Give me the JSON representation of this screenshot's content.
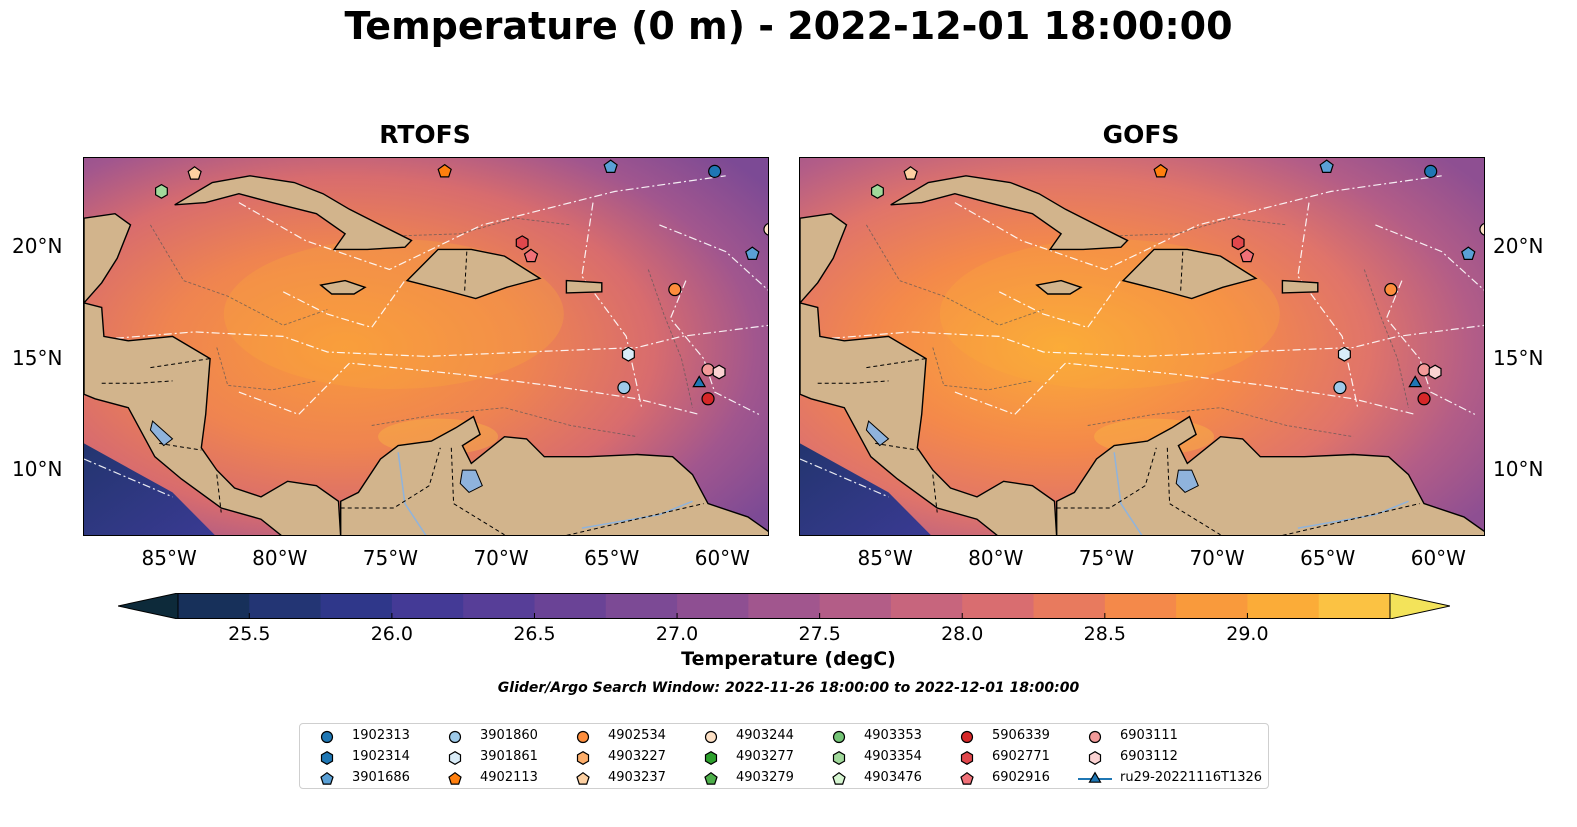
{
  "title": "Temperature (0 m) - 2022-12-01 18:00:00",
  "panels": [
    {
      "title": "RTOFS"
    },
    {
      "title": "GOFS"
    }
  ],
  "axes": {
    "x_ticks": [
      "85°W",
      "80°W",
      "75°W",
      "70°W",
      "65°W",
      "60°W"
    ],
    "y_ticks": [
      "20°N",
      "15°N",
      "10°N"
    ],
    "lon_range": [
      -89,
      -58
    ],
    "lat_range": [
      7,
      24
    ]
  },
  "colorbar": {
    "title": "Temperature (degC)",
    "ticks": [
      "25.5",
      "26.0",
      "26.5",
      "27.0",
      "27.5",
      "28.0",
      "28.5",
      "29.0"
    ],
    "min": 25.25,
    "max": 29.5,
    "step": 0.25,
    "colors": [
      "#0d2a3a",
      "#17305a",
      "#233574",
      "#2f378a",
      "#443a96",
      "#573e98",
      "#6a4396",
      "#7c4a95",
      "#8e4f92",
      "#a1568e",
      "#b35d87",
      "#c7657d",
      "#d96d70",
      "#e87a5e",
      "#f4894a",
      "#f99a3c",
      "#fbac38",
      "#fbc243",
      "#f3e35a"
    ]
  },
  "search_window": "Glider/Argo Search Window: 2022-11-26 18:00:00 to 2022-12-01 18:00:00",
  "legend": [
    {
      "label": "1902313",
      "shape": "circle",
      "color": "#1f77b4"
    },
    {
      "label": "1902314",
      "shape": "hexagon",
      "color": "#1f77b4"
    },
    {
      "label": "3901686",
      "shape": "pentagon",
      "color": "#5aa0d6"
    },
    {
      "label": "3901860",
      "shape": "circle",
      "color": "#9ecae9"
    },
    {
      "label": "3901861",
      "shape": "hexagon",
      "color": "#d9ecf8"
    },
    {
      "label": "4902113",
      "shape": "pentagon",
      "color": "#ff7f0e"
    },
    {
      "label": "4902534",
      "shape": "circle",
      "color": "#fd8d3c"
    },
    {
      "label": "4903227",
      "shape": "hexagon",
      "color": "#fdae6b"
    },
    {
      "label": "4903237",
      "shape": "pentagon",
      "color": "#fdd0a2"
    },
    {
      "label": "4903244",
      "shape": "circle",
      "color": "#fde0c5"
    },
    {
      "label": "4903277",
      "shape": "hexagon",
      "color": "#2ca02c"
    },
    {
      "label": "4903279",
      "shape": "pentagon",
      "color": "#4daf4a"
    },
    {
      "label": "4903353",
      "shape": "circle",
      "color": "#74c476"
    },
    {
      "label": "4903354",
      "shape": "hexagon",
      "color": "#a1d99b"
    },
    {
      "label": "4903476",
      "shape": "pentagon",
      "color": "#d5f5d0"
    },
    {
      "label": "5906339",
      "shape": "circle",
      "color": "#d62728"
    },
    {
      "label": "6902771",
      "shape": "hexagon",
      "color": "#e0474c"
    },
    {
      "label": "6902916",
      "shape": "pentagon",
      "color": "#f07178"
    },
    {
      "label": "6903111",
      "shape": "circle",
      "color": "#f29a99"
    },
    {
      "label": "6903112",
      "shape": "hexagon",
      "color": "#fbd2d2"
    },
    {
      "label": "ru29-20221116T1326",
      "shape": "triangle-line",
      "color": "#1f77b4"
    }
  ],
  "markers": [
    {
      "id": "1902313",
      "lon": -60.5,
      "lat": 23.4
    },
    {
      "id": "3901686",
      "lon": -58.8,
      "lat": 19.7
    },
    {
      "id": "3901686",
      "lon": -65.2,
      "lat": 23.6
    },
    {
      "id": "3901860",
      "lon": -64.6,
      "lat": 13.7
    },
    {
      "id": "3901861",
      "lon": -64.4,
      "lat": 15.2
    },
    {
      "id": "4902113",
      "lon": -72.7,
      "lat": 23.4
    },
    {
      "id": "4902534",
      "lon": -62.3,
      "lat": 18.1
    },
    {
      "id": "4903237",
      "lon": -84.0,
      "lat": 23.3
    },
    {
      "id": "4903244",
      "lon": -58.0,
      "lat": 20.8
    },
    {
      "id": "4903354",
      "lon": -85.5,
      "lat": 22.5
    },
    {
      "id": "5906339",
      "lon": -60.8,
      "lat": 13.2
    },
    {
      "id": "6902771",
      "lon": -69.2,
      "lat": 20.2
    },
    {
      "id": "6902916",
      "lon": -68.8,
      "lat": 19.6
    },
    {
      "id": "6903111",
      "lon": -60.8,
      "lat": 14.5
    },
    {
      "id": "6903112",
      "lon": -60.3,
      "lat": 14.4
    },
    {
      "id": "ru29-20221116T1326",
      "lon": -61.2,
      "lat": 13.9
    }
  ]
}
